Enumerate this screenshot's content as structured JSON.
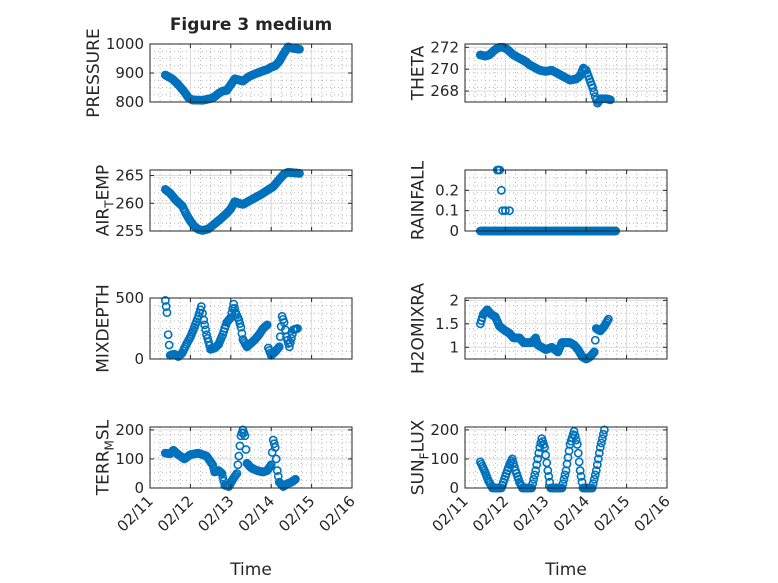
{
  "figure_title": "Figure 3 medium",
  "colors": {
    "marker": "#0072BD",
    "axis": "#262626",
    "grid": "#dcdcdc"
  },
  "chart_data": [
    {
      "id": "pressure",
      "type": "scatter",
      "ylabel": "PRESSURE",
      "xlabel": "",
      "ylim": [
        800,
        1000
      ],
      "yticks": [
        800,
        900,
        1000
      ],
      "yticklabels": [
        "800",
        "900",
        "1000"
      ],
      "xlim": [
        0,
        5
      ],
      "xticks": [
        0,
        1,
        2,
        3,
        4,
        5
      ],
      "xticklabels": [
        "02/11",
        "02/12",
        "02/13",
        "02/14",
        "02/15",
        "02/16"
      ],
      "show_xticklabels": false,
      "grid": true,
      "keyframes": [
        [
          0.38,
          893
        ],
        [
          0.55,
          880
        ],
        [
          0.7,
          860
        ],
        [
          0.85,
          835
        ],
        [
          0.95,
          815
        ],
        [
          1.05,
          807
        ],
        [
          1.3,
          806
        ],
        [
          1.5,
          812
        ],
        [
          1.6,
          818
        ],
        [
          1.7,
          830
        ],
        [
          1.8,
          838
        ],
        [
          1.9,
          840
        ],
        [
          2.0,
          860
        ],
        [
          2.1,
          880
        ],
        [
          2.2,
          876
        ],
        [
          2.3,
          872
        ],
        [
          2.45,
          888
        ],
        [
          2.6,
          897
        ],
        [
          2.75,
          905
        ],
        [
          2.9,
          912
        ],
        [
          3.0,
          920
        ],
        [
          3.1,
          925
        ],
        [
          3.2,
          940
        ],
        [
          3.3,
          965
        ],
        [
          3.42,
          990
        ],
        [
          3.55,
          985
        ],
        [
          3.7,
          982
        ]
      ]
    },
    {
      "id": "theta",
      "type": "scatter",
      "ylabel": "THETA",
      "xlabel": "",
      "ylim": [
        267,
        272.3
      ],
      "yticks": [
        268,
        270,
        272
      ],
      "yticklabels": [
        "268",
        "270",
        "272"
      ],
      "xlim": [
        0,
        5
      ],
      "xticks": [
        0,
        1,
        2,
        3,
        4,
        5
      ],
      "xticklabels": [
        "02/11",
        "02/12",
        "02/13",
        "02/14",
        "02/15",
        "02/16"
      ],
      "show_xticklabels": false,
      "grid": true,
      "keyframes": [
        [
          0.38,
          271.3
        ],
        [
          0.5,
          271.2
        ],
        [
          0.6,
          271.3
        ],
        [
          0.75,
          271.8
        ],
        [
          0.85,
          272.0
        ],
        [
          0.95,
          272.0
        ],
        [
          1.05,
          271.8
        ],
        [
          1.2,
          271.3
        ],
        [
          1.35,
          271.0
        ],
        [
          1.5,
          270.7
        ],
        [
          1.6,
          270.4
        ],
        [
          1.7,
          270.2
        ],
        [
          1.85,
          269.9
        ],
        [
          2.0,
          269.8
        ],
        [
          2.15,
          269.9
        ],
        [
          2.3,
          269.6
        ],
        [
          2.45,
          269.3
        ],
        [
          2.6,
          269.0
        ],
        [
          2.75,
          269.1
        ],
        [
          2.85,
          269.4
        ],
        [
          2.93,
          270.1
        ],
        [
          3.0,
          269.9
        ],
        [
          3.08,
          269.1
        ],
        [
          3.16,
          268.3
        ],
        [
          3.22,
          267.5
        ],
        [
          3.28,
          266.9
        ],
        [
          3.36,
          267.3
        ],
        [
          3.5,
          267.3
        ],
        [
          3.6,
          267.2
        ]
      ]
    },
    {
      "id": "air_temp",
      "type": "scatter",
      "ylabel": "AIR_TEMP",
      "ylabel_main": "AIR",
      "ylabel_sub": "T",
      "ylabel_rest": "EMP",
      "xlabel": "",
      "ylim": [
        255,
        266
      ],
      "yticks": [
        255,
        260,
        265
      ],
      "yticklabels": [
        "255",
        "260",
        "265"
      ],
      "xlim": [
        0,
        5
      ],
      "xticks": [
        0,
        1,
        2,
        3,
        4,
        5
      ],
      "xticklabels": [
        "02/11",
        "02/12",
        "02/13",
        "02/14",
        "02/15",
        "02/16"
      ],
      "show_xticklabels": false,
      "grid": true,
      "keyframes": [
        [
          0.38,
          262.5
        ],
        [
          0.5,
          261.8
        ],
        [
          0.65,
          260.5
        ],
        [
          0.8,
          259.5
        ],
        [
          0.9,
          258.0
        ],
        [
          1.0,
          256.8
        ],
        [
          1.1,
          255.8
        ],
        [
          1.2,
          255.3
        ],
        [
          1.3,
          255.1
        ],
        [
          1.45,
          255.4
        ],
        [
          1.6,
          256.3
        ],
        [
          1.75,
          257.2
        ],
        [
          1.9,
          258.2
        ],
        [
          2.0,
          259.0
        ],
        [
          2.1,
          260.3
        ],
        [
          2.2,
          260.0
        ],
        [
          2.3,
          259.8
        ],
        [
          2.45,
          260.4
        ],
        [
          2.6,
          261.0
        ],
        [
          2.75,
          261.6
        ],
        [
          2.9,
          262.3
        ],
        [
          3.05,
          263.0
        ],
        [
          3.2,
          264.3
        ],
        [
          3.32,
          265.3
        ],
        [
          3.42,
          265.6
        ],
        [
          3.55,
          265.5
        ],
        [
          3.7,
          265.4
        ]
      ]
    },
    {
      "id": "rainfall",
      "type": "scatter",
      "ylabel": "RAINFALL",
      "xlabel": "",
      "ylim": [
        0,
        0.3
      ],
      "yticks": [
        0,
        0.1,
        0.2
      ],
      "yticklabels": [
        "0",
        "0.1",
        "0.2"
      ],
      "xlim": [
        0,
        5
      ],
      "xticks": [
        0,
        1,
        2,
        3,
        4,
        5
      ],
      "xticklabels": [
        "02/11",
        "02/12",
        "02/13",
        "02/14",
        "02/15",
        "02/16"
      ],
      "show_xticklabels": false,
      "grid": true,
      "baseline": {
        "from": 0.38,
        "to": 3.75,
        "value": 0
      },
      "points": [
        [
          0.8,
          0.3
        ],
        [
          0.83,
          0.3
        ],
        [
          0.86,
          0.3
        ],
        [
          0.9,
          0.2
        ],
        [
          0.93,
          0.1
        ],
        [
          1.0,
          0.1
        ],
        [
          1.1,
          0.1
        ],
        [
          0.88,
          0.0
        ]
      ]
    },
    {
      "id": "mixdepth",
      "type": "scatter",
      "ylabel": "MIXDEPTH",
      "xlabel": "",
      "ylim": [
        0,
        500
      ],
      "yticks": [
        0,
        500
      ],
      "yticklabels": [
        "0",
        "500"
      ],
      "xlim": [
        0,
        5
      ],
      "xticks": [
        0,
        1,
        2,
        3,
        4,
        5
      ],
      "xticklabels": [
        "02/11",
        "02/12",
        "02/13",
        "02/14",
        "02/15",
        "02/16"
      ],
      "show_xticklabels": false,
      "grid": true,
      "keyframes": [
        [
          0.38,
          480
        ],
        [
          0.42,
          380
        ],
        [
          0.45,
          200
        ],
        [
          0.5,
          30
        ],
        [
          0.6,
          40
        ],
        [
          0.7,
          20
        ],
        [
          0.8,
          50
        ],
        [
          0.9,
          120
        ],
        [
          1.0,
          180
        ],
        [
          1.1,
          260
        ],
        [
          1.2,
          350
        ],
        [
          1.27,
          430
        ],
        [
          1.33,
          320
        ],
        [
          1.4,
          200
        ],
        [
          1.5,
          80
        ],
        [
          1.6,
          90
        ],
        [
          1.7,
          120
        ],
        [
          1.8,
          200
        ],
        [
          1.9,
          300
        ],
        [
          2.0,
          340
        ],
        [
          2.07,
          450
        ],
        [
          2.12,
          380
        ],
        [
          2.2,
          320
        ],
        [
          2.25,
          260
        ],
        [
          2.3,
          160
        ],
        [
          2.4,
          100
        ],
        [
          2.5,
          130
        ],
        [
          2.6,
          160
        ],
        [
          2.7,
          200
        ],
        [
          2.8,
          250
        ],
        [
          2.9,
          280
        ],
        [
          2.93,
          90
        ],
        [
          3.0,
          30
        ],
        [
          3.1,
          60
        ],
        [
          3.2,
          100
        ],
        [
          3.27,
          350
        ],
        [
          3.32,
          300
        ],
        [
          3.38,
          180
        ],
        [
          3.45,
          100
        ],
        [
          3.55,
          240
        ],
        [
          3.65,
          250
        ]
      ]
    },
    {
      "id": "h2omixra",
      "type": "scatter",
      "ylabel": "H2OMIXRA",
      "xlabel": "",
      "ylim": [
        0.75,
        2.05
      ],
      "yticks": [
        1,
        1.5,
        2
      ],
      "yticklabels": [
        "1",
        "1.5",
        "2"
      ],
      "xlim": [
        0,
        5
      ],
      "xticks": [
        0,
        1,
        2,
        3,
        4,
        5
      ],
      "xticklabels": [
        "02/11",
        "02/12",
        "02/13",
        "02/14",
        "02/15",
        "02/16"
      ],
      "show_xticklabels": false,
      "grid": true,
      "keyframes": [
        [
          0.38,
          1.5
        ],
        [
          0.45,
          1.7
        ],
        [
          0.55,
          1.8
        ],
        [
          0.65,
          1.7
        ],
        [
          0.75,
          1.65
        ],
        [
          0.85,
          1.45
        ],
        [
          1.0,
          1.35
        ],
        [
          1.1,
          1.3
        ],
        [
          1.2,
          1.2
        ],
        [
          1.35,
          1.2
        ],
        [
          1.45,
          1.1
        ],
        [
          1.65,
          1.1
        ],
        [
          1.75,
          1.2
        ],
        [
          1.8,
          1.05
        ],
        [
          1.9,
          1.0
        ],
        [
          2.0,
          0.95
        ],
        [
          2.15,
          1.0
        ],
        [
          2.3,
          0.9
        ],
        [
          2.4,
          1.1
        ],
        [
          2.6,
          1.1
        ],
        [
          2.7,
          1.05
        ],
        [
          2.8,
          0.95
        ],
        [
          2.9,
          0.8
        ],
        [
          3.0,
          0.75
        ],
        [
          3.1,
          0.8
        ],
        [
          3.2,
          0.9
        ],
        [
          3.25,
          1.4
        ],
        [
          3.35,
          1.35
        ],
        [
          3.45,
          1.45
        ],
        [
          3.55,
          1.6
        ]
      ]
    },
    {
      "id": "terr_msl",
      "type": "scatter",
      "ylabel": "TERR_MSL",
      "ylabel_main": "TERR",
      "ylabel_sub": "M",
      "ylabel_rest": "SL",
      "xlabel": "",
      "ylim": [
        0,
        210
      ],
      "yticks": [
        0,
        100,
        200
      ],
      "yticklabels": [
        "0",
        "100",
        "200"
      ],
      "xlim": [
        0,
        5
      ],
      "xticks": [
        0,
        1,
        2,
        3,
        4,
        5
      ],
      "xticklabels": [
        "02/11",
        "02/12",
        "02/13",
        "02/14",
        "02/15",
        "02/16"
      ],
      "show_xticklabels": true,
      "grid": true,
      "keyframes": [
        [
          0.38,
          120
        ],
        [
          0.5,
          118
        ],
        [
          0.58,
          130
        ],
        [
          0.7,
          115
        ],
        [
          0.85,
          100
        ],
        [
          1.0,
          115
        ],
        [
          1.2,
          120
        ],
        [
          1.4,
          110
        ],
        [
          1.55,
          80
        ],
        [
          1.6,
          55
        ],
        [
          1.7,
          60
        ],
        [
          1.78,
          50
        ],
        [
          1.85,
          10
        ],
        [
          1.95,
          5
        ],
        [
          2.05,
          30
        ],
        [
          2.15,
          50
        ],
        [
          2.2,
          110
        ],
        [
          2.25,
          180
        ],
        [
          2.3,
          200
        ],
        [
          2.35,
          180
        ],
        [
          2.4,
          85
        ],
        [
          2.5,
          70
        ],
        [
          2.65,
          60
        ],
        [
          2.8,
          55
        ],
        [
          2.9,
          60
        ],
        [
          3.0,
          80
        ],
        [
          3.05,
          165
        ],
        [
          3.1,
          140
        ],
        [
          3.15,
          60
        ],
        [
          3.2,
          20
        ],
        [
          3.3,
          5
        ],
        [
          3.4,
          15
        ],
        [
          3.5,
          20
        ],
        [
          3.6,
          30
        ]
      ]
    },
    {
      "id": "sun_flux",
      "type": "scatter",
      "ylabel": "SUN_FLUX",
      "ylabel_main": "SUN",
      "ylabel_sub": "F",
      "ylabel_rest": "LUX",
      "xlabel": "Time",
      "ylim": [
        0,
        210
      ],
      "yticks": [
        0,
        100,
        200
      ],
      "yticklabels": [
        "0",
        "100",
        "200"
      ],
      "xlim": [
        0,
        5
      ],
      "xticks": [
        0,
        1,
        2,
        3,
        4,
        5
      ],
      "xticklabels": [
        "02/11",
        "02/12",
        "02/13",
        "02/14",
        "02/15",
        "02/16"
      ],
      "show_xticklabels": true,
      "grid": true,
      "keyframes": [
        [
          0.38,
          90
        ],
        [
          0.48,
          60
        ],
        [
          0.58,
          25
        ],
        [
          0.68,
          0
        ],
        [
          0.9,
          0
        ],
        [
          1.0,
          40
        ],
        [
          1.1,
          80
        ],
        [
          1.17,
          100
        ],
        [
          1.25,
          60
        ],
        [
          1.35,
          20
        ],
        [
          1.42,
          0
        ],
        [
          1.65,
          0
        ],
        [
          1.75,
          60
        ],
        [
          1.85,
          140
        ],
        [
          1.9,
          170
        ],
        [
          1.97,
          140
        ],
        [
          2.05,
          60
        ],
        [
          2.12,
          0
        ],
        [
          2.4,
          0
        ],
        [
          2.5,
          60
        ],
        [
          2.6,
          150
        ],
        [
          2.7,
          195
        ],
        [
          2.78,
          150
        ],
        [
          2.85,
          60
        ],
        [
          2.92,
          0
        ],
        [
          3.15,
          0
        ],
        [
          3.25,
          60
        ],
        [
          3.35,
          140
        ],
        [
          3.45,
          200
        ]
      ]
    }
  ]
}
